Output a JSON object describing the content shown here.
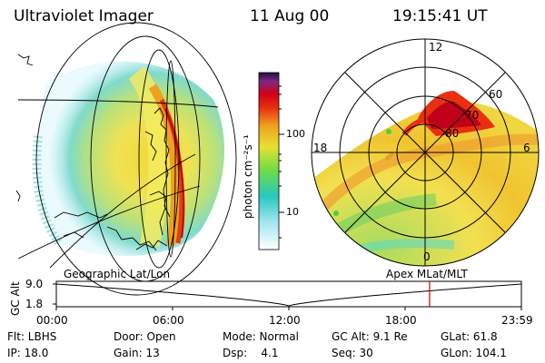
{
  "header": {
    "title": "Ultraviolet Imager",
    "date": "11 Aug 00",
    "time": "19:15:41 UT"
  },
  "colorbar": {
    "label_html": "photon cm⁻²s⁻¹",
    "tick_100": "100",
    "tick_10": "10"
  },
  "polar_plot": {
    "mlt_12": "12",
    "mlt_18": "18",
    "mlt_6": "6",
    "mlt_0": "0",
    "lat_60": "60",
    "lat_70": "70",
    "lat_80": "80"
  },
  "map_labels": {
    "left": "Geographic Lat/Lon",
    "right": "Apex MLat/MLT"
  },
  "timeline": {
    "ylabel": "GC Alt",
    "y_top": "9.0",
    "y_bottom": "1.8",
    "x_ticks": [
      "00:00",
      "06:00",
      "12:00",
      "18:00",
      "23:59"
    ],
    "marker_time_fraction": 0.8026,
    "marker_color": "#cc0000"
  },
  "status": {
    "flt": "Flt: LBHS",
    "door": "Door: Open",
    "mode": "Mode: Normal",
    "gc_alt": "GC Alt: 9.1 Re",
    "glat": "GLat: 61.8",
    "ip": "IP: 18.0",
    "gain": "Gain: 13",
    "dsp": "Dsp:    4.1",
    "seq": "Seq: 30",
    "glon": "GLon: 104.1"
  }
}
